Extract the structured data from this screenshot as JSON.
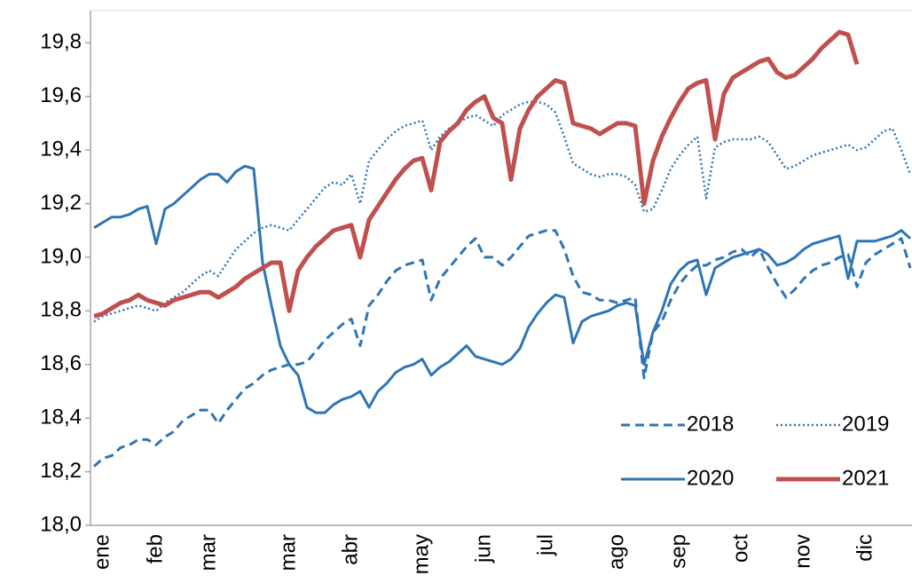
{
  "chart_data": {
    "type": "line",
    "categories": [
      null,
      "ene",
      null,
      null,
      null,
      null,
      null,
      "feb",
      null,
      null,
      null,
      null,
      null,
      "mar",
      null,
      null,
      null,
      null,
      null,
      null,
      null,
      null,
      "mar",
      null,
      null,
      null,
      null,
      null,
      null,
      "abr",
      null,
      null,
      null,
      null,
      null,
      null,
      null,
      "may",
      null,
      null,
      null,
      null,
      null,
      null,
      "jun",
      null,
      null,
      null,
      null,
      null,
      null,
      "jul",
      null,
      null,
      null,
      null,
      null,
      null,
      null,
      "ago",
      null,
      null,
      null,
      null,
      null,
      null,
      "sep",
      null,
      null,
      null,
      null,
      null,
      null,
      "oct",
      null,
      null,
      null,
      null,
      null,
      null,
      "nov",
      null,
      null,
      null,
      null,
      null,
      null,
      "dic",
      null,
      null,
      null,
      null,
      null
    ],
    "series": [
      {
        "name": "2018",
        "color": "#2e75b6",
        "style": "dashed",
        "values": [
          18.22,
          18.25,
          18.26,
          18.29,
          18.3,
          18.32,
          18.32,
          18.3,
          18.33,
          18.35,
          18.39,
          18.41,
          18.43,
          18.43,
          18.38,
          18.43,
          18.47,
          18.51,
          18.53,
          18.56,
          18.58,
          18.59,
          18.6,
          18.6,
          18.61,
          18.65,
          18.69,
          18.72,
          18.75,
          18.77,
          18.67,
          18.82,
          18.86,
          18.91,
          18.95,
          18.97,
          18.98,
          18.99,
          18.84,
          18.92,
          18.96,
          19.0,
          19.04,
          19.07,
          19.0,
          19.0,
          18.97,
          19.0,
          19.04,
          19.08,
          19.09,
          19.1,
          19.1,
          19.03,
          18.93,
          18.87,
          18.86,
          18.84,
          18.84,
          18.83,
          18.84,
          18.85,
          18.55,
          18.72,
          18.76,
          18.84,
          18.9,
          18.94,
          18.97,
          18.97,
          18.99,
          19.0,
          19.02,
          19.03,
          19.0,
          19.03,
          18.96,
          18.9,
          18.85,
          18.88,
          18.92,
          18.95,
          18.97,
          18.98,
          19.0,
          19.01,
          18.89,
          18.98,
          19.01,
          19.03,
          19.05,
          19.07,
          18.96
        ]
      },
      {
        "name": "2019",
        "color": "#2e75b6",
        "style": "dotted",
        "values": [
          18.76,
          18.78,
          18.79,
          18.8,
          18.81,
          18.82,
          18.81,
          18.8,
          18.83,
          18.85,
          18.87,
          18.9,
          18.93,
          18.95,
          18.93,
          18.98,
          19.03,
          19.06,
          19.09,
          19.11,
          19.12,
          19.11,
          19.1,
          19.14,
          19.18,
          19.22,
          19.26,
          19.28,
          19.27,
          19.31,
          19.2,
          19.36,
          19.4,
          19.44,
          19.47,
          19.49,
          19.5,
          19.51,
          19.4,
          19.45,
          19.48,
          19.5,
          19.52,
          19.53,
          19.51,
          19.49,
          19.53,
          19.55,
          19.57,
          19.58,
          19.58,
          19.57,
          19.54,
          19.45,
          19.35,
          19.33,
          19.31,
          19.3,
          19.31,
          19.31,
          19.3,
          19.27,
          19.17,
          19.18,
          19.25,
          19.33,
          19.38,
          19.42,
          19.45,
          19.22,
          19.41,
          19.43,
          19.44,
          19.44,
          19.44,
          19.45,
          19.43,
          19.38,
          19.33,
          19.34,
          19.36,
          19.38,
          19.39,
          19.4,
          19.41,
          19.42,
          19.4,
          19.41,
          19.44,
          19.47,
          19.48,
          19.4,
          19.31
        ]
      },
      {
        "name": "2020",
        "color": "#2e75b6",
        "style": "solid",
        "values": [
          19.11,
          19.13,
          19.15,
          19.15,
          19.16,
          19.18,
          19.19,
          19.05,
          19.18,
          19.2,
          19.23,
          19.26,
          19.29,
          19.31,
          19.31,
          19.28,
          19.32,
          19.34,
          19.33,
          18.98,
          18.82,
          18.67,
          18.6,
          18.56,
          18.44,
          18.42,
          18.42,
          18.45,
          18.47,
          18.48,
          18.5,
          18.44,
          18.5,
          18.53,
          18.57,
          18.59,
          18.6,
          18.62,
          18.56,
          18.59,
          18.61,
          18.64,
          18.67,
          18.63,
          18.62,
          18.61,
          18.6,
          18.62,
          18.66,
          18.74,
          18.79,
          18.83,
          18.86,
          18.85,
          18.68,
          18.76,
          18.78,
          18.79,
          18.8,
          18.82,
          18.83,
          18.82,
          18.6,
          18.72,
          18.8,
          18.9,
          18.95,
          18.98,
          18.99,
          18.86,
          18.96,
          18.98,
          19.0,
          19.01,
          19.02,
          19.03,
          19.01,
          18.97,
          18.98,
          19.0,
          19.03,
          19.05,
          19.06,
          19.07,
          19.08,
          18.92,
          19.06,
          19.06,
          19.06,
          19.07,
          19.08,
          19.1,
          19.07
        ]
      },
      {
        "name": "2021",
        "color": "#c0504d",
        "style": "thick",
        "values": [
          18.78,
          18.79,
          18.81,
          18.83,
          18.84,
          18.86,
          18.84,
          18.83,
          18.82,
          18.84,
          18.85,
          18.86,
          18.87,
          18.87,
          18.85,
          18.87,
          18.89,
          18.92,
          18.94,
          18.96,
          18.98,
          18.98,
          18.8,
          18.95,
          19.0,
          19.04,
          19.07,
          19.1,
          19.11,
          19.12,
          19.0,
          19.14,
          19.19,
          19.24,
          19.29,
          19.33,
          19.36,
          19.37,
          19.25,
          19.43,
          19.47,
          19.5,
          19.55,
          19.58,
          19.6,
          19.52,
          19.5,
          19.29,
          19.48,
          19.55,
          19.6,
          19.63,
          19.66,
          19.65,
          19.5,
          19.49,
          19.48,
          19.46,
          19.48,
          19.5,
          19.5,
          19.49,
          19.2,
          19.36,
          19.45,
          19.52,
          19.58,
          19.63,
          19.65,
          19.66,
          19.44,
          19.61,
          19.67,
          19.69,
          19.71,
          19.73,
          19.74,
          19.69,
          19.67,
          19.68,
          19.71,
          19.74,
          19.78,
          19.81,
          19.84,
          19.83,
          19.72,
          null,
          null,
          null,
          null,
          null,
          null
        ]
      }
    ],
    "ylim": [
      18,
      19.92
    ],
    "yticks": [
      {
        "value": 18,
        "label": "18,0"
      },
      {
        "value": 18.2,
        "label": "18,2"
      },
      {
        "value": 18.4,
        "label": "18,4"
      },
      {
        "value": 18.6,
        "label": "18,6"
      },
      {
        "value": 18.8,
        "label": "18,8"
      },
      {
        "value": 19,
        "label": "19,0"
      },
      {
        "value": 19.2,
        "label": "19,2"
      },
      {
        "value": 19.4,
        "label": "19,4"
      },
      {
        "value": 19.6,
        "label": "19,6"
      },
      {
        "value": 19.8,
        "label": "19,8"
      }
    ],
    "legend": "lower right"
  }
}
